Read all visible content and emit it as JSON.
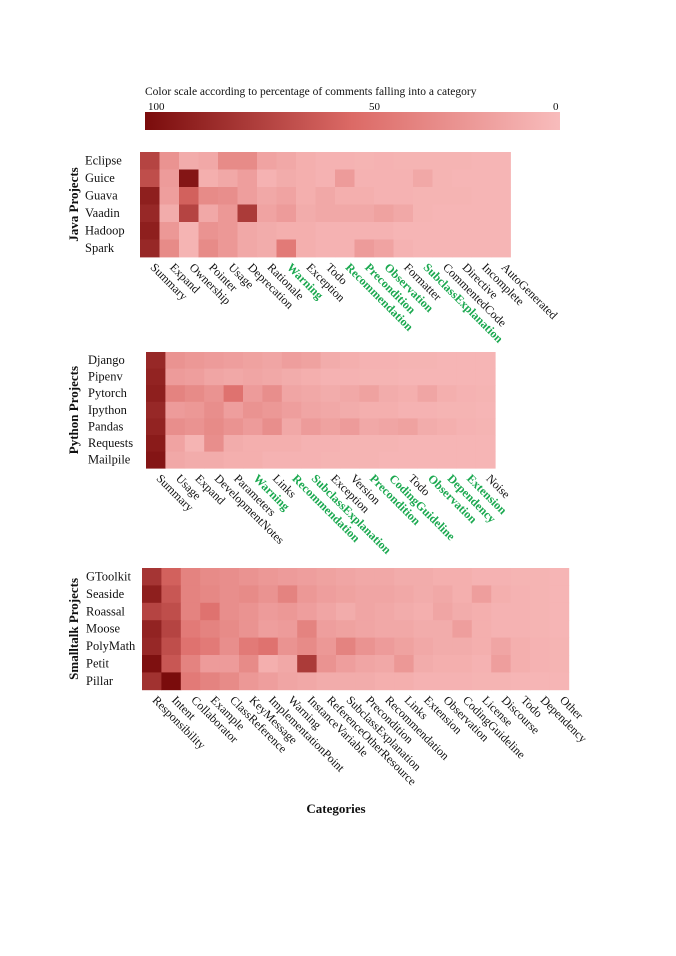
{
  "colorbar": {
    "title": "Color scale according to percentage of comments falling into a category",
    "ticks": [
      "100",
      "50",
      "0"
    ]
  },
  "colors": {
    "scale_max": "#7a0c0c",
    "scale_mid": "#dc6a66",
    "scale_min": "#f8bcbc",
    "highlight_label": "#1aa84f"
  },
  "xlabel": "Categories",
  "chart_data": [
    {
      "type": "heatmap",
      "group_label": "Java Projects",
      "rows": [
        "Eclipse",
        "Guice",
        "Guava",
        "Vaadin",
        "Hadoop",
        "Spark"
      ],
      "columns": [
        "Summary",
        "Expand",
        "Ownership",
        "Pointer",
        "Usage",
        "Deprecation",
        "Rationale",
        "Warning",
        "Exception",
        "Todo",
        "Recommendation",
        "Precondition",
        "Observation",
        "Formatter",
        "SubclassExplanation",
        "CommentedCode",
        "Directive",
        "Incomplete",
        "AutoGenerated"
      ],
      "highlighted_columns": [
        "Warning",
        "Recommendation",
        "Precondition",
        "Observation",
        "SubclassExplanation"
      ],
      "values": [
        [
          70,
          25,
          10,
          12,
          30,
          30,
          15,
          12,
          8,
          6,
          6,
          5,
          6,
          5,
          5,
          5,
          5,
          4,
          4
        ],
        [
          65,
          20,
          95,
          8,
          12,
          18,
          6,
          10,
          8,
          6,
          20,
          6,
          6,
          6,
          12,
          5,
          4,
          4,
          4
        ],
        [
          90,
          18,
          55,
          30,
          28,
          18,
          12,
          15,
          8,
          12,
          8,
          8,
          6,
          6,
          5,
          5,
          5,
          4,
          4
        ],
        [
          85,
          10,
          70,
          12,
          22,
          75,
          15,
          20,
          10,
          12,
          12,
          12,
          16,
          12,
          5,
          4,
          4,
          4,
          4
        ],
        [
          90,
          22,
          5,
          25,
          22,
          12,
          10,
          8,
          8,
          6,
          6,
          6,
          6,
          4,
          4,
          4,
          4,
          4,
          4
        ],
        [
          85,
          30,
          5,
          30,
          22,
          12,
          10,
          40,
          8,
          6,
          6,
          20,
          15,
          6,
          4,
          4,
          4,
          4,
          4
        ]
      ],
      "value_range": [
        0,
        100
      ]
    },
    {
      "type": "heatmap",
      "group_label": "Python Projects",
      "rows": [
        "Django",
        "Pipenv",
        "Pytorch",
        "Ipython",
        "Pandas",
        "Requests",
        "Mailpile"
      ],
      "columns": [
        "Summary",
        "Usage",
        "Expand",
        "DevelopmentNotes",
        "Parameters",
        "Warning",
        "Links",
        "Recommendation",
        "SubclassExplanation",
        "Exception",
        "Version",
        "Precondition",
        "CodingGuideline",
        "Todo",
        "Observation",
        "Dependency",
        "Extension",
        "Noise"
      ],
      "highlighted_columns": [
        "Warning",
        "Recommendation",
        "SubclassExplanation",
        "Precondition",
        "CodingGuideline",
        "Observation",
        "Dependency",
        "Extension"
      ],
      "values": [
        [
          85,
          25,
          22,
          20,
          18,
          16,
          14,
          18,
          16,
          10,
          8,
          6,
          6,
          5,
          5,
          4,
          4,
          4
        ],
        [
          88,
          20,
          18,
          14,
          12,
          14,
          12,
          10,
          8,
          6,
          6,
          5,
          5,
          4,
          4,
          4,
          4,
          4
        ],
        [
          90,
          35,
          30,
          25,
          45,
          20,
          28,
          14,
          12,
          10,
          12,
          16,
          10,
          8,
          14,
          8,
          6,
          5
        ],
        [
          85,
          20,
          22,
          28,
          18,
          25,
          22,
          18,
          14,
          12,
          10,
          8,
          8,
          6,
          6,
          5,
          5,
          4
        ],
        [
          88,
          28,
          25,
          30,
          25,
          20,
          28,
          12,
          20,
          16,
          20,
          12,
          14,
          16,
          10,
          8,
          6,
          5
        ],
        [
          92,
          15,
          5,
          28,
          10,
          8,
          8,
          8,
          6,
          6,
          5,
          5,
          5,
          4,
          4,
          4,
          4,
          4
        ],
        [
          95,
          12,
          10,
          10,
          8,
          8,
          6,
          6,
          6,
          5,
          5,
          5,
          4,
          4,
          4,
          4,
          4,
          4
        ]
      ],
      "value_range": [
        0,
        100
      ]
    },
    {
      "type": "heatmap",
      "group_label": "Smalltalk Projects",
      "rows": [
        "GToolkit",
        "Seaside",
        "Roassal",
        "Moose",
        "PolyMath",
        "Petit",
        "Pillar"
      ],
      "columns": [
        "Responsibility",
        "Intent",
        "Collaborator",
        "Example",
        "ClassReference",
        "KeyMessage",
        "ImplementationPoint",
        "Warning",
        "InstanceVariable",
        "ReferenceOtherResource",
        "SubclassExplanation",
        "Precondition",
        "Recommendation",
        "Links",
        "Extension",
        "Observation",
        "CodingGuideline",
        "License",
        "Discourse",
        "Todo",
        "Dependency",
        "Other"
      ],
      "highlighted_columns": [],
      "values": [
        [
          78,
          55,
          35,
          30,
          28,
          25,
          22,
          20,
          18,
          16,
          14,
          12,
          12,
          10,
          10,
          8,
          8,
          6,
          6,
          5,
          5,
          4
        ],
        [
          90,
          60,
          35,
          32,
          28,
          30,
          25,
          35,
          22,
          18,
          16,
          14,
          14,
          12,
          10,
          12,
          8,
          18,
          8,
          6,
          5,
          4
        ],
        [
          70,
          65,
          35,
          45,
          28,
          25,
          20,
          22,
          18,
          14,
          10,
          14,
          12,
          10,
          8,
          14,
          10,
          8,
          6,
          6,
          5,
          4
        ],
        [
          88,
          70,
          40,
          35,
          30,
          25,
          18,
          20,
          35,
          18,
          16,
          14,
          12,
          12,
          10,
          10,
          18,
          8,
          6,
          6,
          5,
          4
        ],
        [
          85,
          65,
          45,
          40,
          28,
          40,
          45,
          25,
          30,
          22,
          35,
          25,
          20,
          16,
          12,
          10,
          10,
          8,
          14,
          8,
          6,
          5
        ],
        [
          98,
          60,
          35,
          20,
          20,
          30,
          8,
          12,
          75,
          25,
          18,
          14,
          12,
          22,
          10,
          8,
          8,
          6,
          18,
          8,
          6,
          5
        ],
        [
          80,
          100,
          40,
          35,
          30,
          22,
          18,
          14,
          12,
          10,
          10,
          10,
          8,
          8,
          6,
          6,
          6,
          5,
          5,
          4,
          4,
          4
        ]
      ],
      "value_range": [
        0,
        100
      ]
    }
  ]
}
